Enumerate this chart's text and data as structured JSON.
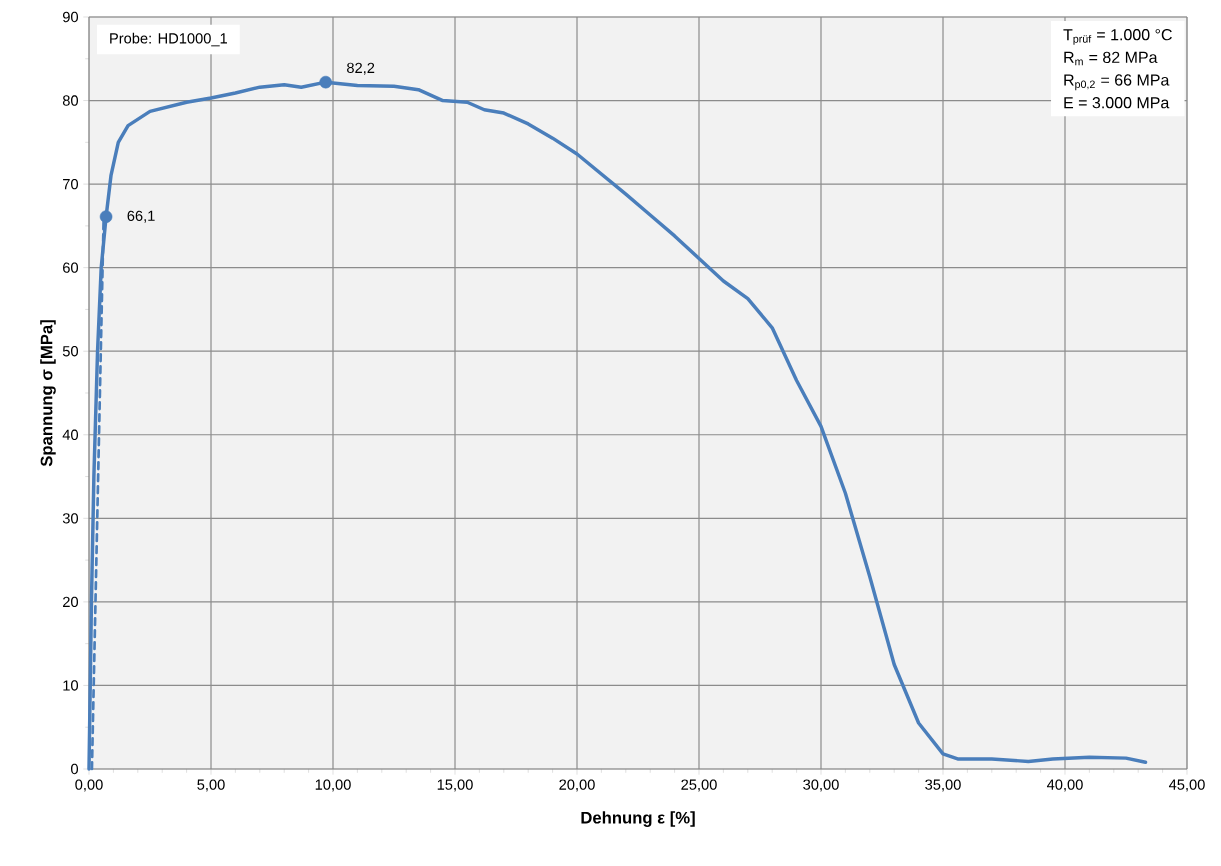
{
  "chart_data": {
    "type": "line",
    "xlabel": "Dehnung ε [%]",
    "ylabel": "Spannung σ [MPa]",
    "xlim": [
      0,
      45
    ],
    "ylim": [
      0,
      90
    ],
    "xticks": [
      {
        "value": 0,
        "label": "0,00"
      },
      {
        "value": 5,
        "label": "5,00"
      },
      {
        "value": 10,
        "label": "10,00"
      },
      {
        "value": 15,
        "label": "15,00"
      },
      {
        "value": 20,
        "label": "20,00"
      },
      {
        "value": 25,
        "label": "25,00"
      },
      {
        "value": 30,
        "label": "30,00"
      },
      {
        "value": 35,
        "label": "35,00"
      },
      {
        "value": 40,
        "label": "40,00"
      },
      {
        "value": 45,
        "label": "45,00"
      }
    ],
    "yticks": [
      0,
      10,
      20,
      30,
      40,
      50,
      60,
      70,
      80,
      90
    ],
    "grid": true,
    "series": [
      {
        "color": "#4a7ebb",
        "line_style": "solid",
        "marker": "none",
        "x": [
          0,
          0.1,
          0.2,
          0.35,
          0.5,
          0.7,
          0.9,
          1.2,
          1.6,
          2.5,
          4,
          5,
          6,
          7,
          8,
          8.7,
          9.7,
          11,
          12.5,
          13.5,
          14.5,
          15.5,
          16.2,
          17,
          18,
          19,
          20,
          21,
          22,
          23,
          24,
          25,
          26,
          27,
          28,
          29,
          30,
          31,
          32,
          33,
          34,
          35,
          35.6,
          37,
          38.5,
          39.5,
          41,
          42.5,
          43.3
        ],
        "values": [
          0,
          20,
          35,
          50,
          60,
          66.1,
          71,
          75,
          77,
          78.7,
          79.8,
          80.3,
          80.9,
          81.6,
          81.9,
          81.6,
          82.2,
          81.8,
          81.7,
          81.3,
          80,
          79.8,
          78.9,
          78.5,
          77.2,
          75.5,
          73.6,
          71.2,
          68.8,
          66.3,
          63.8,
          61.1,
          58.4,
          56.3,
          52.8,
          46.5,
          41,
          33,
          23,
          12.5,
          5.5,
          1.8,
          1.2,
          1.2,
          0.9,
          1.2,
          1.4,
          1.3,
          0.8
        ]
      },
      {
        "color": "#4a7ebb",
        "line_style": "dashed",
        "marker": "none",
        "x": [
          0.12,
          0.6
        ],
        "values": [
          0,
          66
        ]
      },
      {
        "type": "scatter",
        "color": "#4a7ebb",
        "marker": "circle",
        "x": [
          0.7,
          9.7
        ],
        "values": [
          66.1,
          82.2
        ],
        "value_labels": [
          "66,1",
          "82,2"
        ]
      }
    ],
    "annotations": [
      "Probe: HD1000_1",
      "T$_{prüf}$ = 1.000 °C",
      "R$_{m}$ = 82 MPa",
      "R$_{p0,2}$ = 66 MPa",
      "E = 3.000 MPa"
    ]
  }
}
